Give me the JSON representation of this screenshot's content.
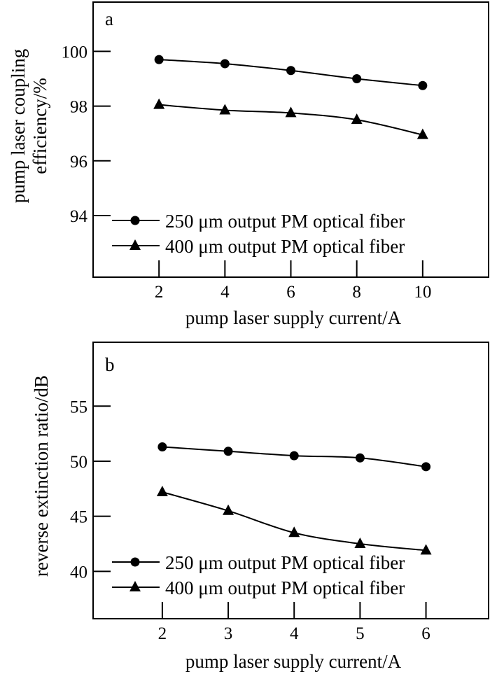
{
  "chart_data": [
    {
      "panel": "a",
      "type": "line",
      "xlabel": "pump laser supply current/A",
      "ylabel_lines": [
        "pump laser coupling",
        "efficiency/%"
      ],
      "x": [
        2,
        4,
        6,
        8,
        10
      ],
      "x_ticks": [
        "2",
        "4",
        "6",
        "8",
        "10"
      ],
      "xlim": [
        0,
        12
      ],
      "y_ticks": [
        94,
        96,
        98,
        100
      ],
      "y_tick_labels": [
        "94",
        "96",
        "98",
        "100"
      ],
      "ylim": [
        91.75,
        101.8
      ],
      "series": [
        {
          "name": "250 μm output PM optical fiber",
          "marker": "circle",
          "values": [
            99.7,
            99.55,
            99.3,
            99.0,
            98.75
          ]
        },
        {
          "name": "400 μm output PM optical fiber",
          "marker": "triangle",
          "values": [
            98.05,
            97.85,
            97.75,
            97.5,
            96.95
          ]
        }
      ],
      "legend": "bottom-left"
    },
    {
      "panel": "b",
      "type": "line",
      "xlabel": "pump laser supply current/A",
      "ylabel_lines": [
        "reverse extinction ratio/dB"
      ],
      "x": [
        2,
        3,
        4,
        5,
        6
      ],
      "x_ticks": [
        "2",
        "3",
        "4",
        "5",
        "6"
      ],
      "xlim": [
        0.95,
        6.95
      ],
      "y_ticks": [
        40,
        45,
        50,
        55
      ],
      "y_tick_labels": [
        "40",
        "45",
        "50",
        "55"
      ],
      "ylim": [
        35.7,
        60.8
      ],
      "series": [
        {
          "name": "250 μm output PM optical fiber",
          "marker": "circle",
          "values": [
            51.3,
            50.9,
            50.5,
            50.3,
            49.5
          ]
        },
        {
          "name": "400 μm output PM optical fiber",
          "marker": "triangle",
          "values": [
            47.2,
            45.5,
            43.5,
            42.5,
            41.9
          ]
        }
      ],
      "legend": "bottom-left"
    }
  ]
}
